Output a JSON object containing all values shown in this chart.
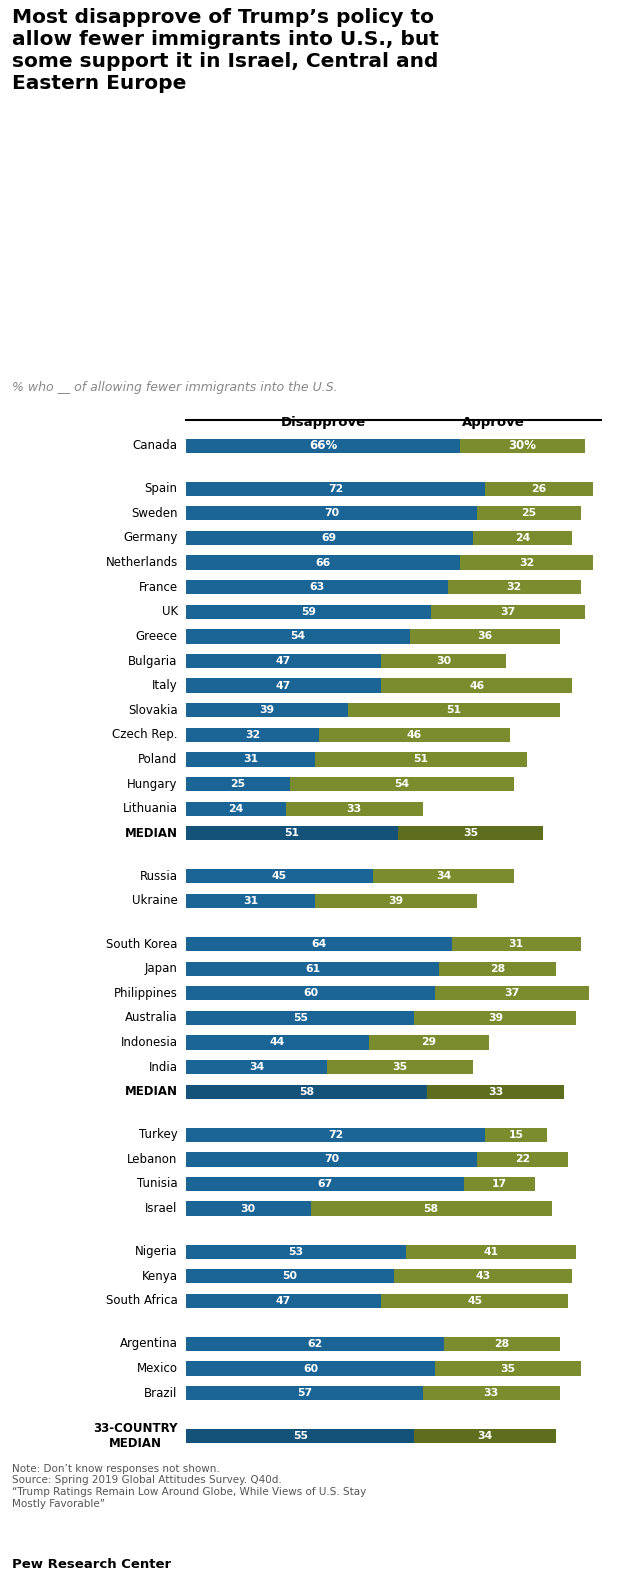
{
  "title": "Most disapprove of Trump’s policy to\nallow fewer immigrants into U.S., but\nsome support it in Israel, Central and\nEastern Europe",
  "subtitle": "% who __ of allowing fewer immigrants into the U.S.",
  "disapprove_color": "#1a6496",
  "approve_color": "#7a8c2e",
  "median_disapprove_color": "#15527a",
  "median_approve_color": "#5d6e1e",
  "background_color": "#ffffff",
  "groups": [
    {
      "rows": [
        {
          "label": "Canada",
          "disapprove": 66,
          "approve": 30,
          "is_median": false,
          "is_canada": true
        }
      ]
    },
    {
      "rows": [
        {
          "label": "Spain",
          "disapprove": 72,
          "approve": 26,
          "is_median": false,
          "is_canada": false
        },
        {
          "label": "Sweden",
          "disapprove": 70,
          "approve": 25,
          "is_median": false,
          "is_canada": false
        },
        {
          "label": "Germany",
          "disapprove": 69,
          "approve": 24,
          "is_median": false,
          "is_canada": false
        },
        {
          "label": "Netherlands",
          "disapprove": 66,
          "approve": 32,
          "is_median": false,
          "is_canada": false
        },
        {
          "label": "France",
          "disapprove": 63,
          "approve": 32,
          "is_median": false,
          "is_canada": false
        },
        {
          "label": "UK",
          "disapprove": 59,
          "approve": 37,
          "is_median": false,
          "is_canada": false
        },
        {
          "label": "Greece",
          "disapprove": 54,
          "approve": 36,
          "is_median": false,
          "is_canada": false
        },
        {
          "label": "Bulgaria",
          "disapprove": 47,
          "approve": 30,
          "is_median": false,
          "is_canada": false
        },
        {
          "label": "Italy",
          "disapprove": 47,
          "approve": 46,
          "is_median": false,
          "is_canada": false
        },
        {
          "label": "Slovakia",
          "disapprove": 39,
          "approve": 51,
          "is_median": false,
          "is_canada": false
        },
        {
          "label": "Czech Rep.",
          "disapprove": 32,
          "approve": 46,
          "is_median": false,
          "is_canada": false
        },
        {
          "label": "Poland",
          "disapprove": 31,
          "approve": 51,
          "is_median": false,
          "is_canada": false
        },
        {
          "label": "Hungary",
          "disapprove": 25,
          "approve": 54,
          "is_median": false,
          "is_canada": false
        },
        {
          "label": "Lithuania",
          "disapprove": 24,
          "approve": 33,
          "is_median": false,
          "is_canada": false
        },
        {
          "label": "MEDIAN",
          "disapprove": 51,
          "approve": 35,
          "is_median": true,
          "is_canada": false
        }
      ]
    },
    {
      "rows": [
        {
          "label": "Russia",
          "disapprove": 45,
          "approve": 34,
          "is_median": false,
          "is_canada": false
        },
        {
          "label": "Ukraine",
          "disapprove": 31,
          "approve": 39,
          "is_median": false,
          "is_canada": false
        }
      ]
    },
    {
      "rows": [
        {
          "label": "South Korea",
          "disapprove": 64,
          "approve": 31,
          "is_median": false,
          "is_canada": false
        },
        {
          "label": "Japan",
          "disapprove": 61,
          "approve": 28,
          "is_median": false,
          "is_canada": false
        },
        {
          "label": "Philippines",
          "disapprove": 60,
          "approve": 37,
          "is_median": false,
          "is_canada": false
        },
        {
          "label": "Australia",
          "disapprove": 55,
          "approve": 39,
          "is_median": false,
          "is_canada": false
        },
        {
          "label": "Indonesia",
          "disapprove": 44,
          "approve": 29,
          "is_median": false,
          "is_canada": false
        },
        {
          "label": "India",
          "disapprove": 34,
          "approve": 35,
          "is_median": false,
          "is_canada": false
        },
        {
          "label": "MEDIAN",
          "disapprove": 58,
          "approve": 33,
          "is_median": true,
          "is_canada": false
        }
      ]
    },
    {
      "rows": [
        {
          "label": "Turkey",
          "disapprove": 72,
          "approve": 15,
          "is_median": false,
          "is_canada": false
        },
        {
          "label": "Lebanon",
          "disapprove": 70,
          "approve": 22,
          "is_median": false,
          "is_canada": false
        },
        {
          "label": "Tunisia",
          "disapprove": 67,
          "approve": 17,
          "is_median": false,
          "is_canada": false
        },
        {
          "label": "Israel",
          "disapprove": 30,
          "approve": 58,
          "is_median": false,
          "is_canada": false
        }
      ]
    },
    {
      "rows": [
        {
          "label": "Nigeria",
          "disapprove": 53,
          "approve": 41,
          "is_median": false,
          "is_canada": false
        },
        {
          "label": "Kenya",
          "disapprove": 50,
          "approve": 43,
          "is_median": false,
          "is_canada": false
        },
        {
          "label": "South Africa",
          "disapprove": 47,
          "approve": 45,
          "is_median": false,
          "is_canada": false
        }
      ]
    },
    {
      "rows": [
        {
          "label": "Argentina",
          "disapprove": 62,
          "approve": 28,
          "is_median": false,
          "is_canada": false
        },
        {
          "label": "Mexico",
          "disapprove": 60,
          "approve": 35,
          "is_median": false,
          "is_canada": false
        },
        {
          "label": "Brazil",
          "disapprove": 57,
          "approve": 33,
          "is_median": false,
          "is_canada": false
        }
      ]
    },
    {
      "rows": [
        {
          "label": "33-COUNTRY\nMEDIAN",
          "disapprove": 55,
          "approve": 34,
          "is_median": true,
          "is_canada": false
        }
      ]
    }
  ],
  "note_text": "Note: Don’t know responses not shown.",
  "source_text": "Source: Spring 2019 Global Attitudes Survey. Q40d.",
  "quote_text": "“Trump Ratings Remain Low Around Globe, While Views of U.S. Stay\nMostly Favorable”",
  "footer_brand": "Pew Research Center"
}
